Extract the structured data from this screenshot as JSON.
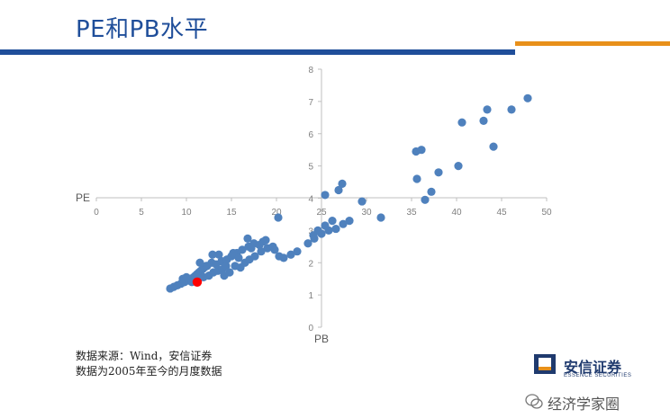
{
  "page": {
    "title": "PE和PB水平",
    "source_line1": "数据来源：Wind，安信证券",
    "source_line2": "数据为2005年至今的月度数据",
    "logo_text": "安信证券",
    "logo_sub": "ESSENCE SECURITIES",
    "watermark": "经济学家圈"
  },
  "colors": {
    "title": "#1f4e9a",
    "top_bar": "#1f4e9a",
    "accent_bar": "#e8901a",
    "points": "#4f81bd",
    "highlight": "#ff0000"
  },
  "chart_data": {
    "type": "scatter",
    "xlabel": "PE",
    "ylabel": "PB",
    "xlim": [
      0,
      50
    ],
    "ylim": [
      0,
      8
    ],
    "xticks": [
      "0",
      "5",
      "10",
      "15",
      "20",
      "25",
      "30",
      "35",
      "40",
      "45",
      "50"
    ],
    "yticks": [
      "0",
      "1",
      "2",
      "3",
      "4",
      "5",
      "6",
      "7",
      "8"
    ],
    "grid": false,
    "legend": "none",
    "series": [
      {
        "points": [
          [
            8.2,
            1.2
          ],
          [
            8.6,
            1.25
          ],
          [
            9.0,
            1.3
          ],
          [
            9.4,
            1.35
          ],
          [
            9.8,
            1.4
          ],
          [
            10.2,
            1.45
          ],
          [
            10.5,
            1.5
          ],
          [
            10.8,
            1.55
          ],
          [
            11.0,
            1.6
          ],
          [
            11.2,
            1.65
          ],
          [
            11.4,
            1.7
          ],
          [
            11.6,
            1.75
          ],
          [
            11.8,
            1.8
          ],
          [
            12.0,
            1.85
          ],
          [
            12.2,
            1.9
          ],
          [
            10.6,
            1.4
          ],
          [
            11.3,
            1.5
          ],
          [
            11.9,
            1.55
          ],
          [
            12.5,
            1.6
          ],
          [
            13.0,
            1.7
          ],
          [
            13.5,
            1.75
          ],
          [
            14.0,
            1.8
          ],
          [
            12.8,
            2.0
          ],
          [
            13.3,
            1.95
          ],
          [
            13.9,
            2.05
          ],
          [
            14.5,
            2.1
          ],
          [
            15.0,
            2.2
          ],
          [
            15.6,
            2.3
          ],
          [
            16.2,
            2.4
          ],
          [
            16.9,
            2.5
          ],
          [
            17.5,
            2.6
          ],
          [
            18.1,
            2.55
          ],
          [
            14.2,
            1.6
          ],
          [
            14.8,
            1.7
          ],
          [
            15.4,
            1.9
          ],
          [
            16.0,
            1.85
          ],
          [
            16.5,
            2.0
          ],
          [
            17.0,
            2.1
          ],
          [
            17.6,
            2.2
          ],
          [
            18.3,
            2.35
          ],
          [
            19.0,
            2.45
          ],
          [
            19.6,
            2.5
          ],
          [
            20.3,
            2.2
          ],
          [
            20.8,
            2.15
          ],
          [
            21.6,
            2.25
          ],
          [
            22.3,
            2.35
          ],
          [
            23.5,
            2.6
          ],
          [
            24.2,
            2.75
          ],
          [
            25.0,
            2.9
          ],
          [
            25.8,
            3.0
          ],
          [
            26.6,
            3.05
          ],
          [
            27.4,
            3.2
          ],
          [
            28.1,
            3.3
          ],
          [
            26.2,
            3.3
          ],
          [
            25.4,
            3.15
          ],
          [
            24.6,
            3.0
          ],
          [
            24.1,
            2.85
          ],
          [
            18.8,
            2.7
          ],
          [
            20.2,
            3.4
          ],
          [
            29.5,
            3.9
          ],
          [
            31.6,
            3.4
          ],
          [
            25.4,
            4.1
          ],
          [
            26.9,
            4.25
          ],
          [
            27.3,
            4.45
          ],
          [
            35.6,
            4.6
          ],
          [
            36.5,
            3.95
          ],
          [
            37.2,
            4.2
          ],
          [
            38.0,
            4.8
          ],
          [
            40.2,
            5.0
          ],
          [
            35.5,
            5.45
          ],
          [
            36.1,
            5.5
          ],
          [
            40.6,
            6.35
          ],
          [
            43.0,
            6.4
          ],
          [
            43.4,
            6.75
          ],
          [
            44.1,
            5.6
          ],
          [
            46.1,
            6.75
          ],
          [
            47.9,
            7.1
          ],
          [
            15.2,
            2.3
          ],
          [
            16.8,
            2.75
          ],
          [
            17.2,
            2.45
          ],
          [
            18.5,
            2.65
          ],
          [
            19.8,
            2.4
          ],
          [
            12.3,
            1.9
          ],
          [
            13.6,
            2.25
          ],
          [
            14.4,
            1.9
          ],
          [
            15.8,
            2.15
          ],
          [
            9.6,
            1.5
          ],
          [
            10.0,
            1.55
          ],
          [
            11.5,
            2.0
          ],
          [
            12.9,
            2.25
          ]
        ]
      }
    ],
    "highlight_point": [
      11.2,
      1.4
    ]
  }
}
